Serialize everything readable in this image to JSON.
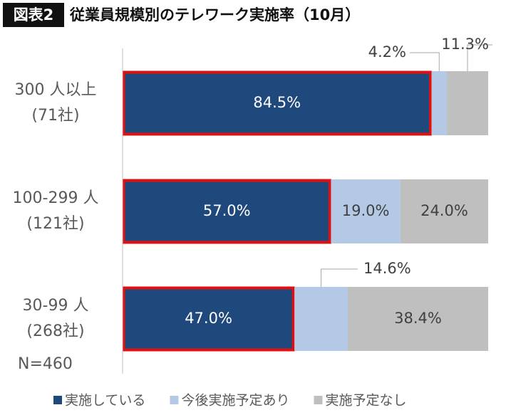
{
  "chart_data": {
    "type": "stacked_barh",
    "badge": "図表2",
    "title": "従業員規模別のテレワーク実施率（10月）",
    "categories": [
      [
        "300 人以上",
        "(71社)"
      ],
      [
        "100-299 人",
        "(121社)"
      ],
      [
        "30-99 人",
        "(268社)"
      ]
    ],
    "note": "N=460",
    "xlim": [
      0,
      100
    ],
    "highlight_series": 0,
    "highlight_color": "#e01010",
    "series": [
      {
        "name": "実施している",
        "color": "#1f497d",
        "values": [
          84.5,
          57.0,
          47.0
        ],
        "value_labels": [
          "84.5%",
          "57.0%",
          "47.0%"
        ]
      },
      {
        "name": "今後実施予定あり",
        "color": "#b4c9e6",
        "values": [
          4.2,
          19.0,
          14.6
        ],
        "value_labels": [
          "4.2%",
          "19.0%",
          "14.6%"
        ]
      },
      {
        "name": "実施予定なし",
        "color": "#bfbfbf",
        "values": [
          11.3,
          24.0,
          38.4
        ],
        "value_labels": [
          "11.3%",
          "24.0%",
          "38.4%"
        ]
      }
    ],
    "legend": "bottom"
  }
}
